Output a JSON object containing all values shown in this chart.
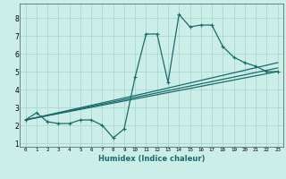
{
  "xlabel": "Humidex (Indice chaleur)",
  "background_color": "#cceee8",
  "grid_color": "#aad8d0",
  "line_color": "#1a6b6b",
  "xlim": [
    -0.5,
    23.5
  ],
  "ylim": [
    0.8,
    8.8
  ],
  "xticks": [
    0,
    1,
    2,
    3,
    4,
    5,
    6,
    7,
    8,
    9,
    10,
    11,
    12,
    13,
    14,
    15,
    16,
    17,
    18,
    19,
    20,
    21,
    22,
    23
  ],
  "yticks": [
    1,
    2,
    3,
    4,
    5,
    6,
    7,
    8
  ],
  "series1_x": [
    0,
    1,
    2,
    3,
    4,
    5,
    6,
    7,
    8,
    9,
    10,
    11,
    12,
    13,
    14,
    15,
    16,
    17,
    18,
    19,
    20,
    21,
    22,
    23
  ],
  "series1_y": [
    2.3,
    2.7,
    2.2,
    2.1,
    2.1,
    2.3,
    2.3,
    2.0,
    1.3,
    1.8,
    4.7,
    7.1,
    7.1,
    4.4,
    8.2,
    7.5,
    7.6,
    7.6,
    6.4,
    5.8,
    5.5,
    5.3,
    5.0,
    5.0
  ],
  "series2_x": [
    0,
    23
  ],
  "series2_y": [
    2.3,
    5.2
  ],
  "series3_x": [
    0,
    23
  ],
  "series3_y": [
    2.3,
    5.0
  ],
  "series4_x": [
    0,
    11,
    23
  ],
  "series4_y": [
    2.3,
    3.8,
    5.5
  ]
}
